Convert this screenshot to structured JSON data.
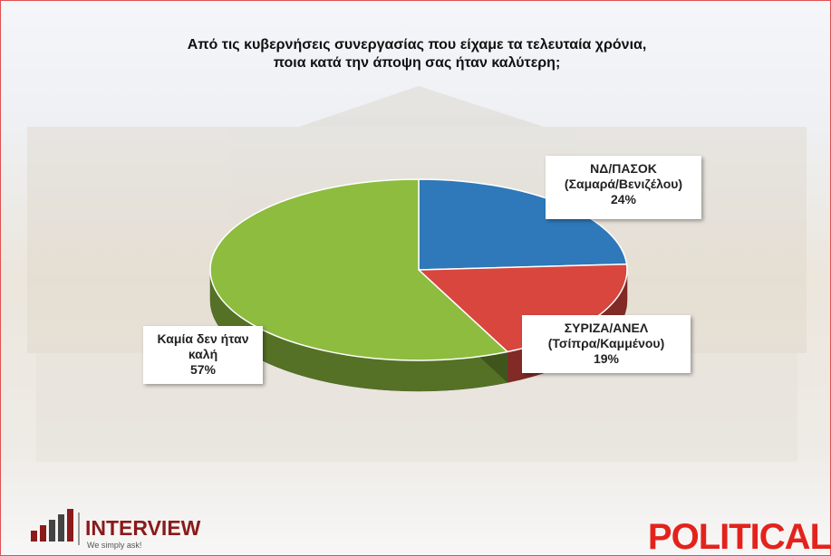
{
  "chart_data": {
    "type": "pie3d",
    "title": "Από τις κυβερνήσεις συνεργασίας που είχαμε τα τελευταία χρόνια, ποια κατά την άποψη σας ήταν καλύτερη;",
    "categories": [
      [
        "ΝΔ/ΠΑΣΟΚ",
        "(Σαμαρά/Βενιζέλου)"
      ],
      [
        "ΣΥΡΙΖΑ/ΑΝΕΛ",
        "(Τσίπρα/Καμμένου)"
      ],
      [
        "Καμία δεν ήταν",
        "καλή"
      ]
    ],
    "values": [
      24,
      19,
      57
    ],
    "value_labels": [
      "24%",
      "19%",
      "57%"
    ],
    "colors": [
      "#2f78b9",
      "#d8463d",
      "#8dbc3f"
    ]
  },
  "branding": {
    "company": "INTERVIEW",
    "tagline": "We simply ask!",
    "partner": "POLITICAL"
  }
}
